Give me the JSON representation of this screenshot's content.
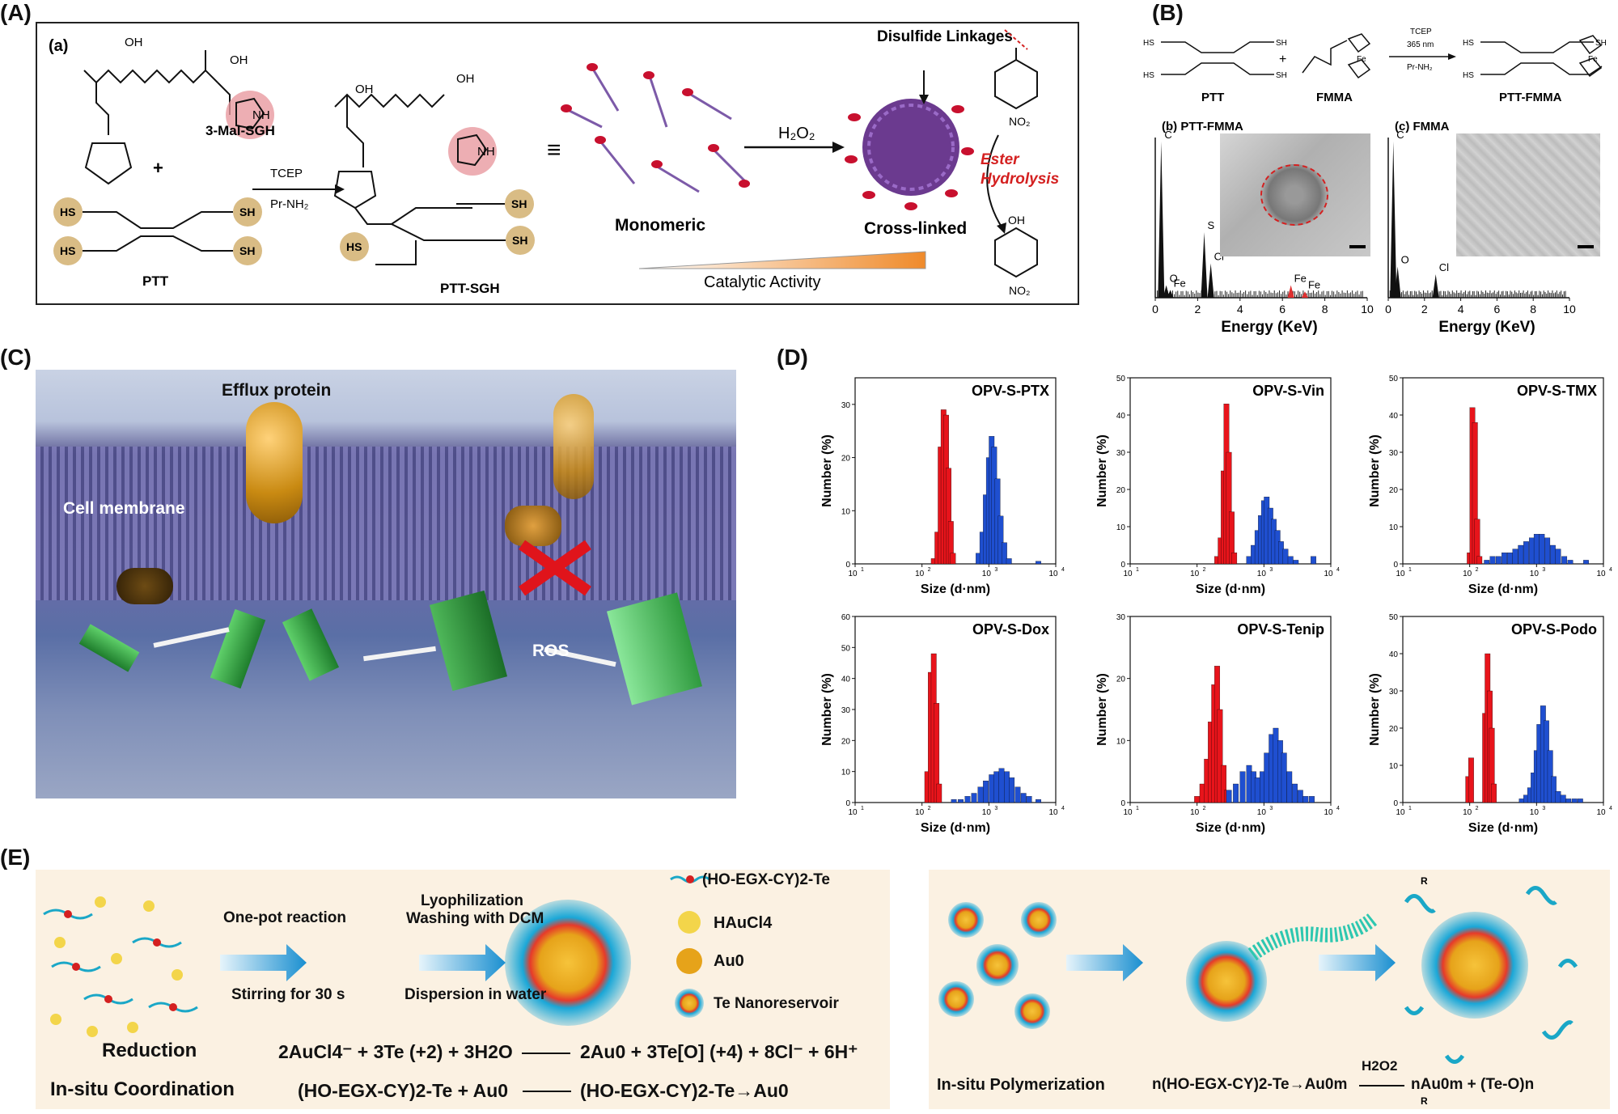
{
  "panels": {
    "A": {
      "letter": "(A)",
      "sub": "(a)",
      "mal_label": "3-Mal-SGH",
      "plus": "+",
      "ptt": "PTT",
      "arrow_top": "TCEP",
      "arrow_bottom": "Pr-NH₂",
      "product": "PTT-SGH",
      "equiv": "≡",
      "monomeric": "Monomeric",
      "h2o2": "H₂O₂",
      "crosslinked": "Cross-linked",
      "disulfide": "Disulfide Linkages",
      "catalytic": "Catalytic Activity",
      "ester": "Ester Hydrolysis",
      "sh": "SH",
      "hs": "HS",
      "oh": "OH",
      "nh": "NH",
      "no2": "NO₂",
      "nh_small": "N",
      "h": "H",
      "o": "O"
    },
    "B": {
      "letter": "(B)",
      "ptt": "PTT",
      "fmma": "FMMA",
      "product": "PTT-FMMA",
      "arrow_top": "TCEP",
      "arrow_mid": "365 nm",
      "arrow_bottom": "Pr-NH₂",
      "plus": "+",
      "fe": "Fe",
      "sh": "SH",
      "hs": "HS"
    },
    "C": {
      "letter": "(C)",
      "efflux": "Efflux protein",
      "membrane": "Cell membrane",
      "ros": "ROS"
    },
    "D": {
      "letter": "(D)"
    },
    "E": {
      "letter": "(E)",
      "one_pot": "One-pot reaction",
      "stirring": "Stirring for 30 s",
      "lyo": "Lyophilization",
      "washing": "Washing with DCM",
      "dispersion": "Dispersion in water",
      "legend_polymer": "(HO-EGX-CY)2-Te",
      "legend_haucl4": "HAuCl4",
      "legend_au0": "Au0",
      "legend_te": "Te Nanoreservoir",
      "reduction": "Reduction",
      "coordination": "In-situ Coordination",
      "polymerization": "In-situ Polymerization",
      "eq_reduction_left": "2AuCl4⁻ + 3Te (+2) + 3H2O",
      "eq_reduction_right": "2Au0 + 3Te[O] (+4) + 8Cl⁻ + 6H⁺",
      "eq_coord_left": "(HO-EGX-CY)2-Te + Au0",
      "eq_coord_right": "(HO-EGX-CY)2-Te→Au0",
      "eq_poly_left": "n(HO-EGX-CY)2-Te→Au0m",
      "eq_poly_arrow": "H2O2",
      "eq_poly_right": "nAu0m + (Te-O)n",
      "eq_poly_r": "R"
    }
  },
  "chart_data": [
    {
      "id": "eds-ptt-fmma",
      "type": "bar",
      "title": "(b) PTT-FMMA",
      "xlabel": "Energy (KeV)",
      "xlim": [
        0,
        10
      ],
      "xticks": [
        0,
        2,
        4,
        6,
        8,
        10
      ],
      "peak_labels": [
        "C",
        "O",
        "Fe",
        "S",
        "Cl",
        "Fe",
        "Fe"
      ],
      "peaks_x": [
        0.28,
        0.52,
        0.71,
        2.31,
        2.62,
        6.4,
        7.06
      ],
      "peaks_rel": [
        1.0,
        0.08,
        0.05,
        0.42,
        0.22,
        0.08,
        0.04
      ],
      "highlight_color": "#e03030"
    },
    {
      "id": "eds-fmma",
      "type": "bar",
      "title": "(c) FMMA",
      "xlabel": "Energy (KeV)",
      "xlim": [
        0,
        10
      ],
      "xticks": [
        0,
        2,
        4,
        6,
        8,
        10
      ],
      "peak_labels": [
        "C",
        "O",
        "Cl"
      ],
      "peaks_x": [
        0.28,
        0.52,
        2.62
      ],
      "peaks_rel": [
        1.0,
        0.2,
        0.15
      ]
    },
    {
      "id": "opv-s-ptx",
      "type": "bar",
      "title": "OPV-S-PTX",
      "xlabel": "Size (d·nm)",
      "ylabel": "Number (%)",
      "ylim": [
        0,
        35
      ],
      "yticks": [
        0,
        10,
        20,
        30
      ],
      "xtick_exp": [
        "1",
        "2",
        "3",
        "4"
      ],
      "series": [
        {
          "color": "#e8141b",
          "x": [
            150,
            170,
            190,
            210,
            230,
            250,
            270,
            290
          ],
          "values": [
            1,
            6,
            22,
            29,
            28,
            18,
            8,
            2
          ]
        },
        {
          "color": "#1f4fd0",
          "x": [
            700,
            800,
            900,
            1000,
            1100,
            1200,
            1350,
            1500,
            1700,
            2000,
            5500
          ],
          "values": [
            2,
            6,
            13,
            20,
            24,
            22,
            16,
            9,
            4,
            1,
            0.5
          ]
        }
      ]
    },
    {
      "id": "opv-s-vin",
      "type": "bar",
      "title": "OPV-S-Vin",
      "xlabel": "Size (d·nm)",
      "ylabel": "Number (%)",
      "ylim": [
        0,
        50
      ],
      "yticks": [
        0,
        10,
        20,
        30,
        40,
        50
      ],
      "xtick_exp": [
        "1",
        "2",
        "3",
        "4"
      ],
      "series": [
        {
          "color": "#e8141b",
          "x": [
            200,
            225,
            250,
            275,
            300,
            330,
            360
          ],
          "values": [
            2,
            7,
            25,
            43,
            30,
            14,
            3
          ]
        },
        {
          "color": "#1f4fd0",
          "x": [
            600,
            700,
            800,
            900,
            1000,
            1100,
            1250,
            1400,
            1600,
            1800,
            2100,
            2500,
            3000,
            5500
          ],
          "values": [
            2,
            5,
            9,
            13,
            17,
            18,
            15,
            12,
            9,
            6,
            4,
            2,
            1,
            2
          ]
        }
      ]
    },
    {
      "id": "opv-s-tmx",
      "type": "bar",
      "title": "OPV-S-TMX",
      "xlabel": "Size (d·nm)",
      "ylabel": "Number (%)",
      "ylim": [
        0,
        50
      ],
      "yticks": [
        0,
        10,
        20,
        30,
        40,
        50
      ],
      "xtick_exp": [
        "1",
        "2",
        "3",
        "4"
      ],
      "series": [
        {
          "color": "#e8141b",
          "x": [
            100,
            110,
            120,
            130,
            140
          ],
          "values": [
            3,
            42,
            38,
            12,
            2
          ]
        },
        {
          "color": "#1f4fd0",
          "x": [
            180,
            220,
            270,
            330,
            400,
            480,
            580,
            700,
            850,
            1000,
            1200,
            1450,
            1750,
            2100,
            2600,
            3200,
            5500
          ],
          "values": [
            1,
            2,
            2,
            3,
            3,
            4,
            5,
            6,
            7,
            8,
            8,
            7,
            5,
            4,
            2,
            1,
            1
          ]
        }
      ]
    },
    {
      "id": "opv-s-dox",
      "type": "bar",
      "title": "OPV-S-Dox",
      "xlabel": "Size (d·nm)",
      "ylabel": "Number (%)",
      "ylim": [
        0,
        60
      ],
      "yticks": [
        0,
        10,
        20,
        30,
        40,
        50,
        60
      ],
      "xtick_exp": [
        "1",
        "2",
        "3",
        "4"
      ],
      "series": [
        {
          "color": "#e8141b",
          "x": [
            120,
            135,
            150,
            165,
            180
          ],
          "values": [
            10,
            42,
            48,
            32,
            6
          ]
        },
        {
          "color": "#1f4fd0",
          "x": [
            300,
            380,
            480,
            600,
            750,
            900,
            1100,
            1300,
            1550,
            1850,
            2200,
            2700,
            3300,
            4000,
            5500
          ],
          "values": [
            1,
            1,
            2,
            3,
            5,
            7,
            9,
            10,
            11,
            10,
            8,
            5,
            3,
            2,
            1
          ]
        }
      ]
    },
    {
      "id": "opv-s-tenip",
      "type": "bar",
      "title": "OPV-S-Tenip",
      "xlabel": "Size (d·nm)",
      "ylabel": "Number (%)",
      "ylim": [
        0,
        30
      ],
      "yticks": [
        0,
        10,
        20,
        30
      ],
      "xtick_exp": [
        "1",
        "2",
        "3",
        "4"
      ],
      "series": [
        {
          "color": "#e8141b",
          "x": [
            100,
            120,
            140,
            160,
            180,
            200,
            220,
            250,
            280
          ],
          "values": [
            1,
            3,
            7,
            13,
            19,
            22,
            15,
            6,
            2
          ]
        },
        {
          "color": "#1f4fd0",
          "x": [
            300,
            380,
            480,
            600,
            700,
            800,
            950,
            1100,
            1300,
            1500,
            1750,
            2000,
            2400,
            2900,
            3500,
            4200,
            5200
          ],
          "values": [
            2,
            3,
            5,
            6,
            5,
            4,
            5,
            8,
            11,
            12,
            10,
            8,
            5,
            3,
            2,
            1,
            1
          ]
        }
      ]
    },
    {
      "id": "opv-s-podo",
      "type": "bar",
      "title": "OPV-S-Podo",
      "xlabel": "Size (d·nm)",
      "ylabel": "Number (%)",
      "ylim": [
        0,
        50
      ],
      "yticks": [
        0,
        10,
        20,
        30,
        40,
        50
      ],
      "xtick_exp": [
        "1",
        "2",
        "3",
        "4"
      ],
      "series": [
        {
          "color": "#e8141b",
          "x": [
            95,
            105,
            170,
            185,
            200,
            215,
            230
          ],
          "values": [
            7,
            12,
            24,
            40,
            30,
            20,
            5
          ]
        },
        {
          "color": "#1f4fd0",
          "x": [
            600,
            700,
            800,
            900,
            1000,
            1100,
            1250,
            1400,
            1600,
            1800,
            2100,
            2500,
            3000,
            3700,
            4500
          ],
          "values": [
            1,
            2,
            4,
            8,
            14,
            21,
            26,
            22,
            14,
            7,
            3,
            2,
            1,
            1,
            1
          ]
        }
      ]
    }
  ]
}
